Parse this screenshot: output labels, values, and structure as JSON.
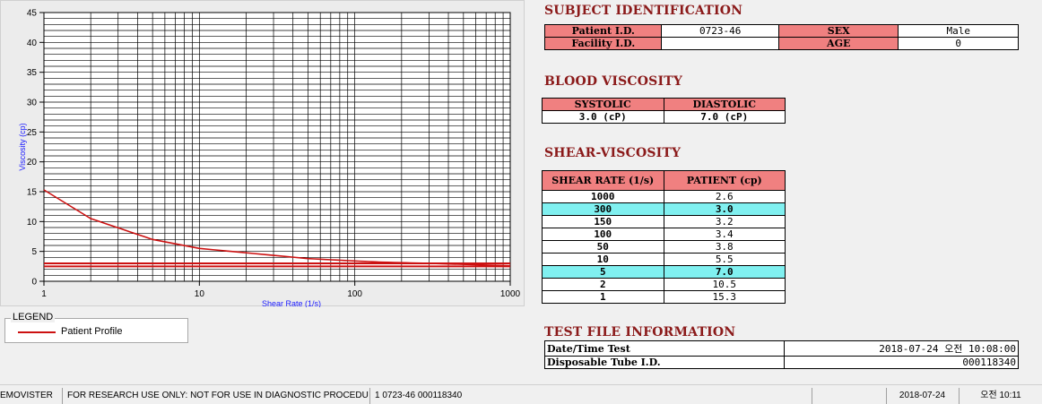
{
  "chart_data": {
    "type": "line",
    "x_scale": "log",
    "xlim": [
      1,
      1000
    ],
    "ylim": [
      0,
      45
    ],
    "xlabel": "Shear Rate (1/s)",
    "ylabel": "Viscosity (cp)",
    "x_tick_labels": [
      "1",
      "10",
      "100",
      "1000"
    ],
    "y_tick_labels": [
      "0",
      "5",
      "10",
      "15",
      "20",
      "25",
      "30",
      "35",
      "40",
      "45"
    ],
    "grid": true,
    "series": [
      {
        "name": "Patient Profile",
        "color": "#cc1111",
        "x": [
          1,
          2,
          5,
          10,
          50,
          100,
          150,
          300,
          1000
        ],
        "values": [
          15.3,
          10.5,
          7.0,
          5.5,
          3.8,
          3.4,
          3.2,
          3.0,
          2.6
        ]
      },
      {
        "color": "#cc1111",
        "x": [
          1,
          1000
        ],
        "values": [
          3.0,
          3.0
        ]
      },
      {
        "color": "#cc1111",
        "x": [
          1,
          1000
        ],
        "values": [
          2.5,
          2.5
        ]
      }
    ]
  },
  "legend": {
    "title": "LEGEND",
    "entry": "Patient Profile"
  },
  "subject": {
    "title": "SUBJECT IDENTIFICATION",
    "patient_id_label": "Patient I.D.",
    "patient_id": "0723-46",
    "sex_label": "SEX",
    "sex": "Male",
    "facility_id_label": "Facility I.D.",
    "facility_id": "",
    "age_label": "AGE",
    "age": "0"
  },
  "blood": {
    "title": "BLOOD VISCOSITY",
    "systolic_label": "SYSTOLIC",
    "diastolic_label": "DIASTOLIC",
    "systolic": "3.0 (cP)",
    "diastolic": "7.0 (cP)"
  },
  "shear": {
    "title": "SHEAR-VISCOSITY",
    "col1": "SHEAR RATE (1/s)",
    "col2": "PATIENT (cp)",
    "rows": [
      {
        "rate": "1000",
        "value": "2.6"
      },
      {
        "rate": "300",
        "value": "3.0"
      },
      {
        "rate": "150",
        "value": "3.2"
      },
      {
        "rate": "100",
        "value": "3.4"
      },
      {
        "rate": "50",
        "value": "3.8"
      },
      {
        "rate": "10",
        "value": "5.5"
      },
      {
        "rate": "5",
        "value": "7.0"
      },
      {
        "rate": "2",
        "value": "10.5"
      },
      {
        "rate": "1",
        "value": "15.3"
      }
    ]
  },
  "test_file": {
    "title": "TEST FILE INFORMATION",
    "date_label": "Date/Time Test",
    "date_value": "2018-07-24  오전 10:08:00",
    "tube_label": "Disposable Tube I.D.",
    "tube_value": "000118340"
  },
  "status": {
    "app": "EMOVISTER",
    "notice": "FOR RESEARCH USE ONLY: NOT FOR USE IN DIAGNOSTIC PROCEDURES",
    "record": "1  0723-46  000118340",
    "empty": "",
    "date": "2018-07-24",
    "time": "오전 10:11"
  }
}
